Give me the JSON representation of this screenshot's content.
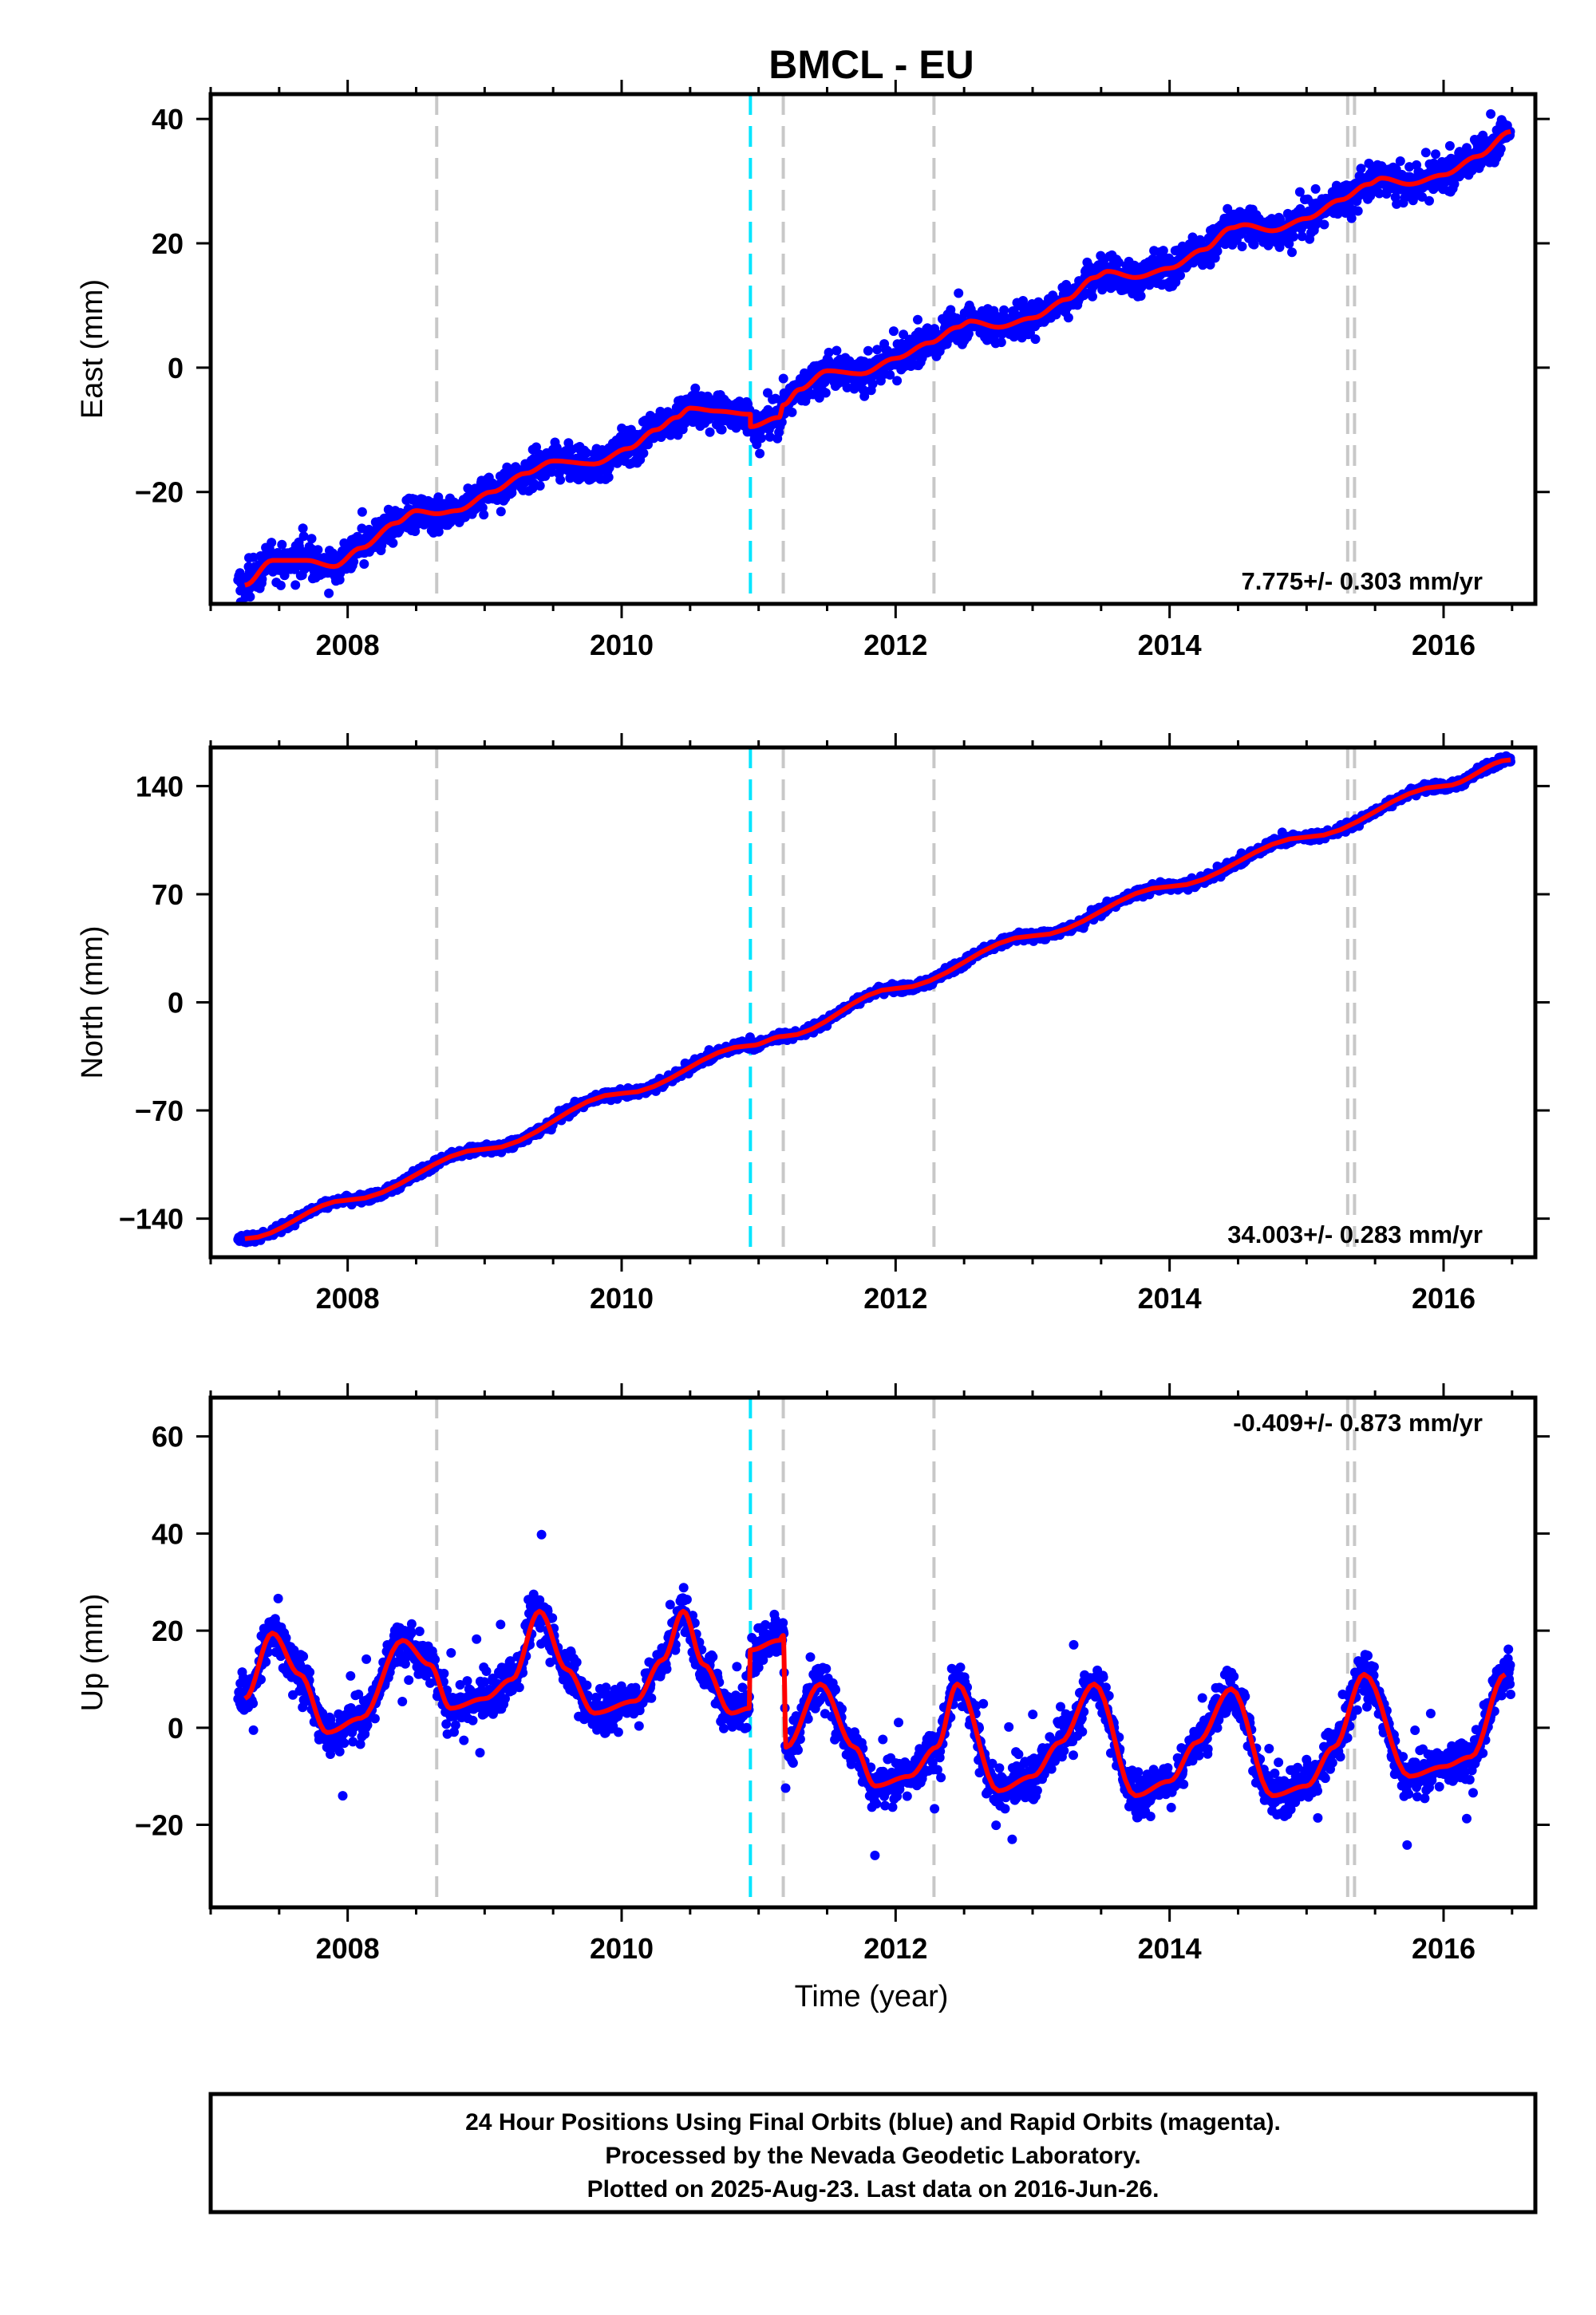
{
  "title": "BMCL - EU",
  "x_axis_label": "Time (year)",
  "footer": {
    "lines": [
      "24 Hour Positions Using Final Orbits (blue) and Rapid Orbits (magenta).",
      "Processed by the Nevada Geodetic Laboratory.",
      "Plotted on 2025-Aug-23. Last data on 2016-Jun-26."
    ]
  },
  "colors": {
    "observations": "#0000ff",
    "model_fit": "#ff0000",
    "event_line": "#c8c8c8",
    "equipment_change_line": "#00e5ff",
    "frame": "#000000"
  },
  "chart_data": [
    {
      "type": "scatter",
      "component": "east",
      "ylabel": "East (mm)",
      "xlim": [
        2007.0,
        2016.67
      ],
      "ylim": [
        -38,
        44
      ],
      "x_ticks": [
        2008,
        2010,
        2012,
        2014,
        2016
      ],
      "y_ticks": [
        -20,
        0,
        20,
        40
      ],
      "rate_text": "7.775+/- 0.303 mm/yr",
      "rate_position": "bottom-right",
      "dashed_lines_gray": [
        2008.65,
        2011.18,
        2012.28,
        2015.3,
        2015.35
      ],
      "dashed_lines_cyan": [
        2010.94
      ],
      "fit": {
        "x": [
          2007.25,
          2007.45,
          2007.7,
          2007.9,
          2008.1,
          2008.35,
          2008.5,
          2008.65,
          2008.8,
          2009.05,
          2009.3,
          2009.5,
          2009.8,
          2010.05,
          2010.25,
          2010.4,
          2010.5,
          2010.7,
          2010.94,
          2010.94,
          2011.15,
          2011.18,
          2011.3,
          2011.5,
          2011.75,
          2012.0,
          2012.25,
          2012.45,
          2012.55,
          2012.75,
          2013.0,
          2013.25,
          2013.45,
          2013.55,
          2013.75,
          2014.0,
          2014.25,
          2014.45,
          2014.55,
          2014.75,
          2015.0,
          2015.25,
          2015.45,
          2015.55,
          2015.75,
          2016.0,
          2016.25,
          2016.49
        ],
        "y": [
          -35,
          -31,
          -31,
          -32,
          -29,
          -25,
          -23,
          -23.5,
          -23,
          -20,
          -17,
          -15,
          -15.5,
          -13,
          -10,
          -8,
          -6.5,
          -7,
          -7.5,
          -9.5,
          -8,
          -6,
          -3.5,
          -0.5,
          -1,
          1.5,
          4,
          6.5,
          7.5,
          6.5,
          8,
          11,
          14.5,
          15.5,
          14.5,
          16,
          19,
          22.5,
          23,
          22,
          24,
          27,
          29.5,
          30.5,
          29.5,
          31,
          34,
          38
        ]
      },
      "observations": {
        "start": 2007.2,
        "end": 2016.49,
        "noise_amplitude_mm": 2.2,
        "outlier_amplitude_mm": 4
      }
    },
    {
      "type": "scatter",
      "component": "north",
      "ylabel": "North (mm)",
      "xlim": [
        2007.0,
        2016.67
      ],
      "ylim": [
        -165,
        165
      ],
      "x_ticks": [
        2008,
        2010,
        2012,
        2014,
        2016
      ],
      "y_ticks": [
        -140,
        -70,
        0,
        70,
        140
      ],
      "rate_text": "34.003+/- 0.283 mm/yr",
      "rate_position": "bottom-right",
      "dashed_lines_gray": [
        2008.65,
        2011.18,
        2012.28,
        2015.3,
        2015.35
      ],
      "dashed_lines_cyan": [
        2010.94
      ],
      "fit": {
        "x": [
          2007.25,
          2008.0,
          2009.0,
          2010.0,
          2010.94,
          2011.18,
          2012.0,
          2013.0,
          2014.0,
          2015.0,
          2016.0,
          2016.49
        ],
        "y": [
          -153,
          -128,
          -95,
          -59,
          -28,
          -22,
          9,
          43,
          75,
          107,
          140,
          157
        ]
      },
      "observations": {
        "start": 2007.2,
        "end": 2016.49,
        "noise_amplitude_mm": 2.2,
        "outlier_amplitude_mm": 4
      }
    },
    {
      "type": "scatter",
      "component": "up",
      "ylabel": "Up (mm)",
      "xlim": [
        2007.0,
        2016.67
      ],
      "ylim": [
        -37,
        68
      ],
      "x_ticks": [
        2008,
        2010,
        2012,
        2014,
        2016
      ],
      "y_ticks": [
        -20,
        0,
        20,
        40,
        60
      ],
      "rate_text": "-0.409+/- 0.873 mm/yr",
      "rate_position": "top-right",
      "dashed_lines_gray": [
        2008.65,
        2011.18,
        2012.28,
        2015.3,
        2015.35
      ],
      "dashed_lines_cyan": [
        2010.94
      ],
      "fit": {
        "x": [
          2007.25,
          2007.45,
          2007.65,
          2007.85,
          2008.1,
          2008.4,
          2008.6,
          2008.75,
          2009.0,
          2009.2,
          2009.4,
          2009.6,
          2009.8,
          2010.1,
          2010.3,
          2010.45,
          2010.6,
          2010.8,
          2010.93,
          2010.94,
          2011.15,
          2011.18,
          2011.2,
          2011.45,
          2011.7,
          2011.85,
          2012.1,
          2012.3,
          2012.45,
          2012.75,
          2013.0,
          2013.2,
          2013.45,
          2013.75,
          2014.0,
          2014.2,
          2014.45,
          2014.75,
          2015.0,
          2015.2,
          2015.42,
          2015.75,
          2016.0,
          2016.2,
          2016.45
        ],
        "y": [
          6,
          19.5,
          11,
          -1,
          2,
          18,
          13,
          4,
          6,
          10,
          24,
          12,
          3,
          5.5,
          14,
          24,
          13,
          3,
          4,
          16,
          18,
          19,
          -4,
          9,
          -4,
          -12,
          -10,
          -4,
          9,
          -13,
          -10,
          -3,
          9,
          -14,
          -11,
          -3,
          8,
          -14,
          -12,
          -4,
          11,
          -10,
          -8,
          -6,
          11
        ]
      },
      "observations": {
        "start": 2007.2,
        "end": 2016.49,
        "noise_amplitude_mm": 3.5,
        "outlier_amplitude_mm": 12
      }
    }
  ]
}
